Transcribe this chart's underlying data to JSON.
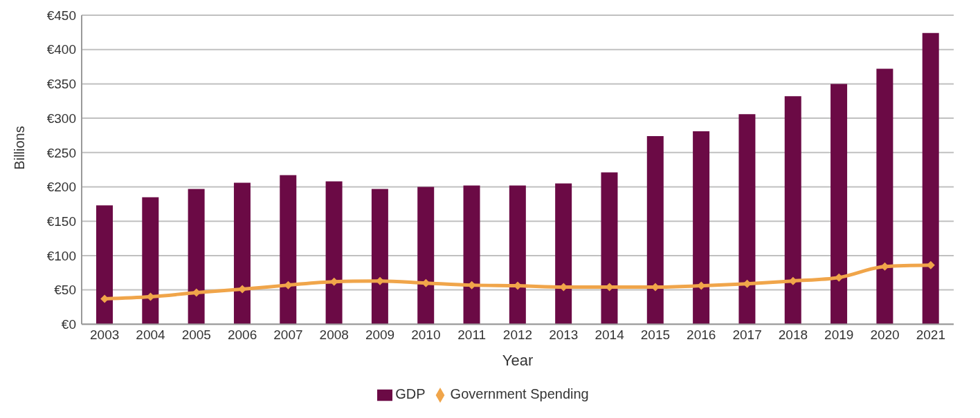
{
  "chart_data": {
    "type": "bar",
    "xlabel": "Year",
    "ylabel": "Billions",
    "categories": [
      "2003",
      "2004",
      "2005",
      "2006",
      "2007",
      "2008",
      "2009",
      "2010",
      "2011",
      "2012",
      "2013",
      "2014",
      "2015",
      "2016",
      "2017",
      "2018",
      "2019",
      "2020",
      "2021"
    ],
    "series": [
      {
        "name": "GDP",
        "color": "#6b0a45",
        "values": [
          173,
          185,
          197,
          206,
          217,
          208,
          197,
          200,
          202,
          202,
          205,
          221,
          274,
          281,
          306,
          332,
          350,
          372,
          424
        ]
      },
      {
        "name": "Government Spending",
        "type": "line",
        "color": "#f0a54a",
        "marker": "diamond",
        "values": [
          37,
          40,
          46,
          51,
          57,
          62,
          63,
          60,
          57,
          56,
          54,
          54,
          54,
          56,
          59,
          63,
          68,
          84,
          86
        ]
      }
    ],
    "ylim": [
      0,
      450
    ],
    "yticks": [
      {
        "value": 0,
        "label": "€0"
      },
      {
        "value": 50,
        "label": "€50"
      },
      {
        "value": 100,
        "label": "€100"
      },
      {
        "value": 150,
        "label": "€150"
      },
      {
        "value": 200,
        "label": "€200"
      },
      {
        "value": 250,
        "label": "€250"
      },
      {
        "value": 300,
        "label": "€300"
      },
      {
        "value": 350,
        "label": "€350"
      },
      {
        "value": 400,
        "label": "€400"
      },
      {
        "value": 450,
        "label": "€450"
      }
    ],
    "grid": "y",
    "legend": "bottom"
  }
}
